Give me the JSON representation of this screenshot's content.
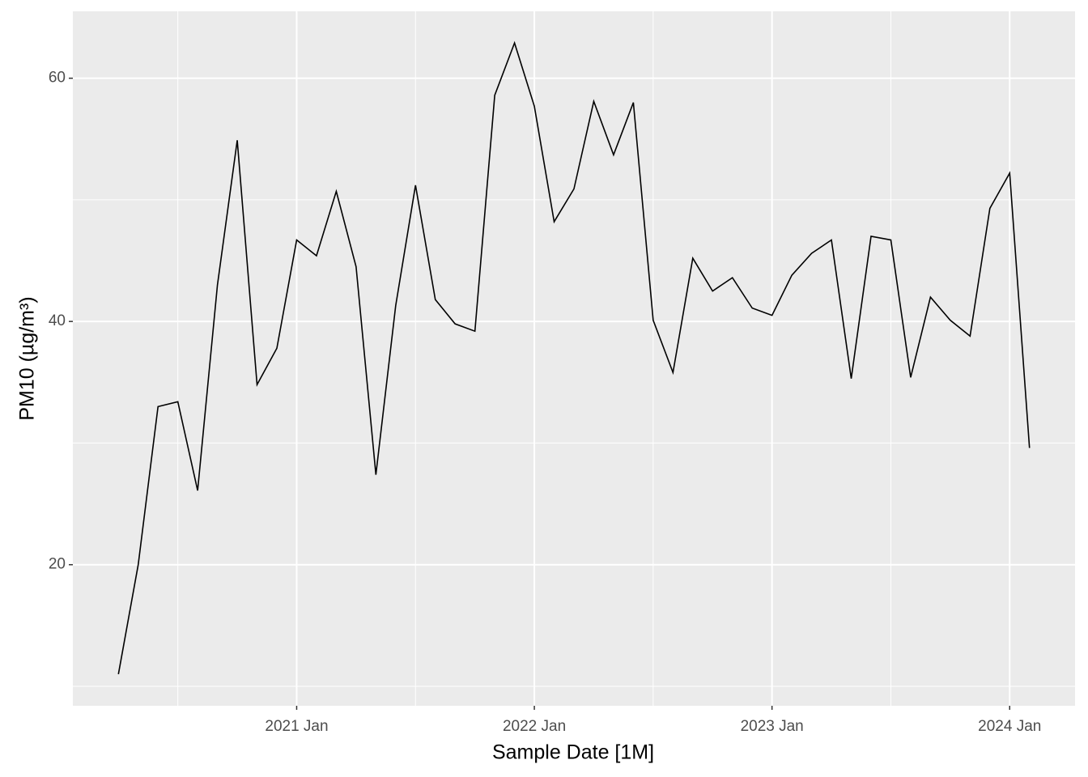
{
  "chart_data": {
    "type": "line",
    "xlabel": "Sample Date [1M]",
    "ylabel": "PM10 (µg/m³)",
    "x": [
      "2020-04",
      "2020-05",
      "2020-06",
      "2020-07",
      "2020-08",
      "2020-09",
      "2020-10",
      "2020-11",
      "2020-12",
      "2021-01",
      "2021-02",
      "2021-03",
      "2021-04",
      "2021-05",
      "2021-06",
      "2021-07",
      "2021-08",
      "2021-09",
      "2021-10",
      "2021-11",
      "2021-12",
      "2022-01",
      "2022-02",
      "2022-03",
      "2022-04",
      "2022-05",
      "2022-06",
      "2022-07",
      "2022-08",
      "2022-09",
      "2022-10",
      "2022-11",
      "2022-12",
      "2023-01",
      "2023-02",
      "2023-03",
      "2023-04",
      "2023-05",
      "2023-06",
      "2023-07",
      "2023-08",
      "2023-09",
      "2023-10",
      "2023-11",
      "2023-12",
      "2024-01",
      "2024-02"
    ],
    "series": [
      {
        "name": "PM10",
        "color": "#000000",
        "values": [
          11.0,
          20.0,
          33.0,
          33.4,
          26.1,
          43.0,
          54.9,
          34.8,
          37.8,
          46.7,
          45.4,
          50.7,
          44.5,
          27.4,
          41.3,
          51.2,
          41.8,
          39.8,
          39.2,
          58.6,
          62.9,
          57.7,
          48.2,
          50.9,
          58.1,
          53.7,
          58.0,
          40.1,
          35.8,
          45.2,
          42.5,
          43.6,
          41.1,
          40.5,
          43.8,
          45.6,
          46.7,
          35.3,
          47.0,
          46.7,
          35.4,
          42.0,
          40.1,
          38.8,
          49.3,
          52.2,
          29.6
        ]
      }
    ],
    "xlim": [
      "2020-01-22",
      "2024-04-10"
    ],
    "xticks": [
      {
        "value": "2021-01",
        "label": "2021 Jan"
      },
      {
        "value": "2022-01",
        "label": "2022 Jan"
      },
      {
        "value": "2023-01",
        "label": "2023 Jan"
      },
      {
        "value": "2024-01",
        "label": "2024 Jan"
      }
    ],
    "ylim": [
      8.4,
      65.5
    ],
    "yticks": [
      20,
      40,
      60
    ],
    "grid": true
  }
}
